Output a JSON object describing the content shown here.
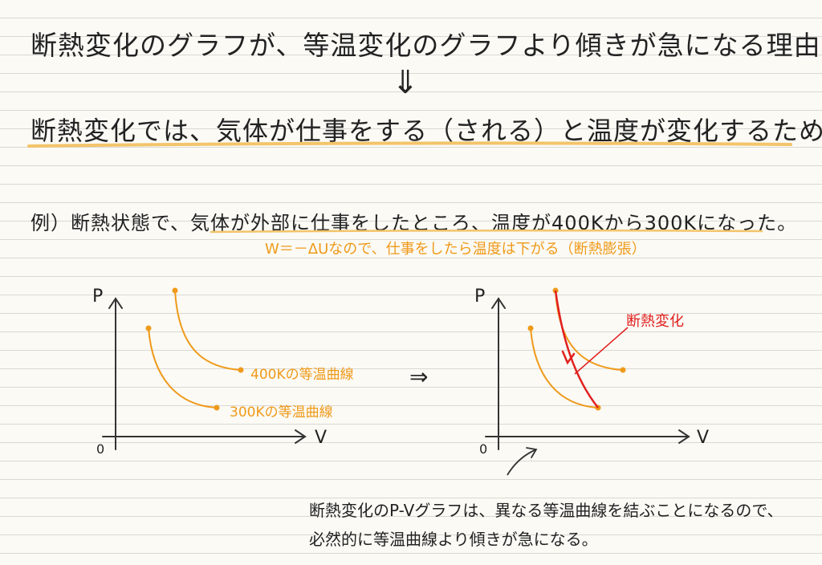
{
  "title": "断熱変化のグラフが、等温変化のグラフより傾きが急になる理由",
  "arrow_down": "⇓",
  "heading": "断熱変化では、気体が仕事をする（される）と温度が変化するため！",
  "example": "例）断熱状態で、気体が外部に仕事をしたところ、温度が400Kから300Kになった。",
  "note_orange": "W＝－ΔUなので、仕事をしたら温度は下がる（断熱膨張）",
  "left_graph": {
    "axis_p": "P",
    "axis_v": "V",
    "origin": "0",
    "label_400": "400Kの等温曲線",
    "label_300": "300Kの等温曲線"
  },
  "implies": "⇒",
  "right_graph": {
    "axis_p": "P",
    "axis_v": "V",
    "origin": "0",
    "adiabatic_label": "断熱変化"
  },
  "bottom_note_line1": "断熱変化のP-Vグラフは、異なる等温曲線を結ぶことになるので、",
  "bottom_note_line2": "必然的に等温曲線より傾きが急になる。",
  "colors": {
    "orange": "#ef9a1a",
    "red": "#e0201f",
    "highlight": "#f3c46a"
  }
}
